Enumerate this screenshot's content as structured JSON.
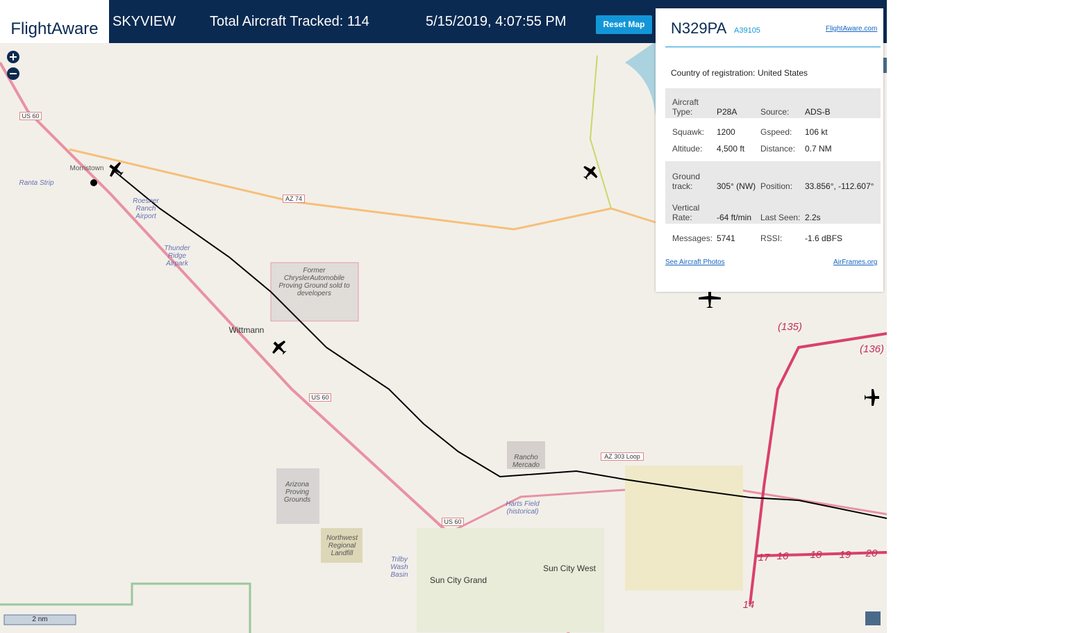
{
  "header": {
    "logo": "FlightAware",
    "app": "SKYVIEW",
    "tracked": "Total Aircraft Tracked: 114",
    "datetime": "5/15/2019, 4:07:55 PM",
    "reset_button": "Reset Map"
  },
  "panel": {
    "callsign": "N329PA",
    "hex": "A39105",
    "site_link": "FlightAware.com",
    "country_label": "Country of registration:",
    "country": "United States",
    "groups": [
      [
        [
          "Aircraft Type:",
          "P28A",
          "Source:",
          "ADS-B"
        ]
      ],
      [
        [
          "Squawk:",
          "1200",
          "Gspeed:",
          "106 kt"
        ],
        [
          "Altitude:",
          "4,500 ft",
          "Distance:",
          "0.7 NM"
        ]
      ],
      [
        [
          "Ground track:",
          "305° (NW)",
          "Position:",
          "33.856°, -112.607°"
        ],
        [
          "Vertical Rate:",
          "-64 ft/min",
          "Last Seen:",
          "2.2s"
        ]
      ],
      [
        [
          "Messages:",
          "5741",
          "RSSI:",
          "-1.6 dBFS"
        ]
      ]
    ],
    "photos_link": "See Aircraft Photos",
    "airframes_link": "AirFrames.org"
  },
  "map": {
    "labels": [
      "Morristown",
      "Ranta Strip",
      "Roesner Ranch Airport",
      "Thunder Ridge Airpark",
      "US 60",
      "AZ 74",
      "Former ChryslerAutomobile Proving Ground sold to developers",
      "Wittmann",
      "US 60",
      "Rancho Mercado",
      "Arizona Proving Grounds",
      "Northwest Regional Landfill",
      "Harts Field (historical)",
      "US 60",
      "AZ 303 Loop",
      "Sun City Grand",
      "Sun City West",
      "Trilby Wash Basin",
      "(135)",
      "(136)",
      "17",
      "16",
      "18",
      "19",
      "20",
      "14"
    ],
    "scale": "2 nm"
  }
}
